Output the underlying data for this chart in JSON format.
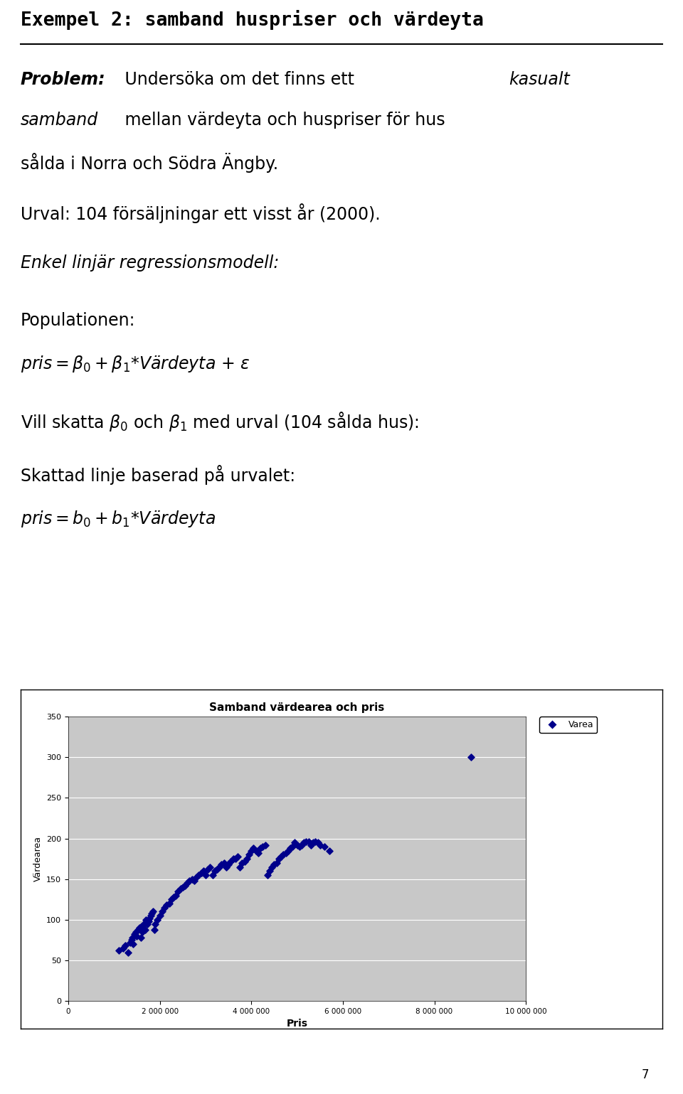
{
  "title": "Exempel 2: samband huspriser och värdeyta",
  "chart_title": "Samband värdearea och pris",
  "xlabel": "Pris",
  "ylabel": "Värdearea",
  "legend_label": "Varea",
  "xlim": [
    0,
    10000000
  ],
  "ylim": [
    0,
    350
  ],
  "xticks": [
    0,
    2000000,
    4000000,
    6000000,
    8000000,
    10000000
  ],
  "xtick_labels": [
    "0",
    "2 000 000",
    "4 000 000",
    "6 000 000",
    "8 000 000",
    "10 000 000"
  ],
  "yticks": [
    0,
    50,
    100,
    150,
    200,
    250,
    300,
    350
  ],
  "dot_color": "#00008B",
  "chart_bg": "#C8C8C8",
  "scatter_data_pris": [
    1100000,
    1200000,
    1250000,
    1300000,
    1350000,
    1380000,
    1400000,
    1420000,
    1450000,
    1480000,
    1500000,
    1520000,
    1550000,
    1580000,
    1600000,
    1620000,
    1650000,
    1680000,
    1700000,
    1720000,
    1750000,
    1780000,
    1800000,
    1820000,
    1850000,
    1880000,
    1900000,
    1950000,
    2000000,
    2050000,
    2100000,
    2150000,
    2200000,
    2250000,
    2300000,
    2350000,
    2400000,
    2450000,
    2500000,
    2550000,
    2600000,
    2650000,
    2700000,
    2750000,
    2800000,
    2850000,
    2900000,
    2950000,
    3000000,
    3050000,
    3100000,
    3150000,
    3200000,
    3250000,
    3300000,
    3350000,
    3400000,
    3450000,
    3500000,
    3550000,
    3600000,
    3650000,
    3700000,
    3750000,
    3800000,
    3850000,
    3900000,
    3950000,
    4000000,
    4050000,
    4100000,
    4150000,
    4200000,
    4250000,
    4300000,
    4350000,
    4400000,
    4450000,
    4500000,
    4550000,
    4600000,
    4650000,
    4700000,
    4750000,
    4800000,
    4850000,
    4900000,
    4950000,
    5000000,
    5050000,
    5100000,
    5150000,
    5200000,
    5250000,
    5300000,
    5350000,
    5400000,
    5450000,
    5500000,
    5600000,
    5700000,
    8800000
  ],
  "scatter_data_varea": [
    62,
    65,
    68,
    60,
    72,
    75,
    78,
    70,
    82,
    85,
    80,
    88,
    90,
    78,
    92,
    85,
    95,
    88,
    100,
    95,
    98,
    102,
    105,
    108,
    110,
    88,
    95,
    100,
    105,
    110,
    115,
    118,
    120,
    125,
    128,
    130,
    135,
    138,
    140,
    142,
    145,
    148,
    150,
    148,
    152,
    155,
    158,
    160,
    155,
    162,
    165,
    155,
    160,
    162,
    165,
    168,
    170,
    165,
    168,
    172,
    175,
    175,
    178,
    165,
    170,
    172,
    175,
    180,
    185,
    188,
    185,
    182,
    188,
    190,
    192,
    155,
    160,
    165,
    168,
    170,
    175,
    178,
    180,
    182,
    185,
    188,
    190,
    195,
    192,
    190,
    192,
    195,
    196,
    196,
    192,
    195,
    196,
    195,
    192,
    190,
    185,
    300
  ],
  "page_number": "7",
  "background_color": "#FFFFFF",
  "title_fontsize": 19,
  "body_fontsize": 17,
  "chart_title_fontsize": 11
}
